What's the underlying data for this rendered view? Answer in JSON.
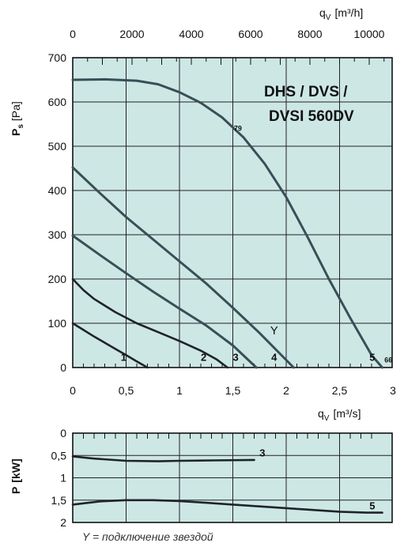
{
  "colors": {
    "plot_bg": "#cde7e5",
    "grid": "#222222",
    "curve": "#3a4e57",
    "curve_dark": "#1f2328"
  },
  "chart_data": [
    {
      "type": "line",
      "title": "DHS / DVS /",
      "title_line2": "DVSI 560DV",
      "ylabel_main": "P",
      "ylabel_sub": "s",
      "ylabel_unit": "[Pa]",
      "xlabel_main": "q",
      "xlabel_sub": "V",
      "xlabel_unit": "[m³/s]",
      "x2label_main": "q",
      "x2label_sub": "V",
      "x2label_unit": "[m³/h]",
      "xlim": [
        0,
        3
      ],
      "ylim": [
        0,
        700
      ],
      "x_ticks": [
        "0",
        "0,5",
        "1",
        "1,5",
        "2",
        "2,5",
        "3"
      ],
      "y_ticks": [
        "0",
        "100",
        "200",
        "300",
        "400",
        "500",
        "600",
        "700"
      ],
      "x2_ticks": [
        "0",
        "2000",
        "4000",
        "6000",
        "8000",
        "10000"
      ],
      "annotation": "Y",
      "annotation_pos": [
        1.85,
        75
      ],
      "grid": true,
      "series": [
        {
          "name": "1",
          "label_at": [
            0.45,
            15
          ],
          "x": [
            0,
            0.1,
            0.2,
            0.3,
            0.4,
            0.5,
            0.6,
            0.7
          ],
          "y": [
            100,
            85,
            70,
            56,
            42,
            28,
            14,
            0
          ]
        },
        {
          "name": "2",
          "label_at": [
            1.2,
            15
          ],
          "x": [
            0,
            0.1,
            0.2,
            0.4,
            0.6,
            0.8,
            1.0,
            1.2,
            1.35,
            1.45
          ],
          "y": [
            200,
            175,
            155,
            125,
            100,
            80,
            60,
            38,
            18,
            0
          ]
        },
        {
          "name": "3",
          "label_at": [
            1.5,
            15
          ],
          "x": [
            0,
            0.25,
            0.5,
            0.75,
            1.0,
            1.25,
            1.5,
            1.72
          ],
          "y": [
            298,
            255,
            213,
            172,
            133,
            95,
            50,
            0
          ]
        },
        {
          "name": "4",
          "label_at": [
            1.86,
            15
          ],
          "x": [
            0,
            0.25,
            0.5,
            0.75,
            1.0,
            1.25,
            1.5,
            1.75,
            2.07
          ],
          "y": [
            452,
            395,
            340,
            290,
            240,
            190,
            135,
            78,
            0
          ]
        },
        {
          "name": "5",
          "label_at": [
            2.78,
            15
          ],
          "x": [
            0,
            0.3,
            0.6,
            0.8,
            1.0,
            1.2,
            1.4,
            1.6,
            1.8,
            2.0,
            2.2,
            2.4,
            2.6,
            2.8,
            2.9
          ],
          "y": [
            650,
            651,
            648,
            640,
            622,
            598,
            565,
            520,
            460,
            385,
            295,
            200,
            112,
            28,
            0
          ]
        }
      ],
      "point_labels": [
        {
          "text": "79",
          "x": 1.51,
          "y": 535
        },
        {
          "text": "66",
          "x": 2.92,
          "y": 12
        }
      ]
    },
    {
      "type": "line",
      "ylabel_main": "P",
      "ylabel_unit": "[kW]",
      "xlim": [
        0,
        3
      ],
      "ylim": [
        0,
        2
      ],
      "y_inverted": true,
      "y_ticks": [
        "0",
        "0,5",
        "1",
        "1,5",
        "2"
      ],
      "grid": true,
      "series": [
        {
          "name": "3",
          "label_at": [
            1.75,
            0.43
          ],
          "x": [
            0,
            0.2,
            0.5,
            0.8,
            1.0,
            1.3,
            1.7
          ],
          "y": [
            0.52,
            0.57,
            0.62,
            0.63,
            0.62,
            0.61,
            0.6
          ]
        },
        {
          "name": "5",
          "label_at": [
            2.78,
            1.62
          ],
          "x": [
            0,
            0.25,
            0.5,
            0.75,
            1.0,
            1.25,
            1.5,
            1.75,
            2.0,
            2.25,
            2.5,
            2.75,
            2.9
          ],
          "y": [
            1.6,
            1.53,
            1.5,
            1.5,
            1.52,
            1.56,
            1.6,
            1.64,
            1.68,
            1.72,
            1.76,
            1.78,
            1.78
          ]
        }
      ]
    }
  ],
  "footnote": "Y = подключение звездой"
}
